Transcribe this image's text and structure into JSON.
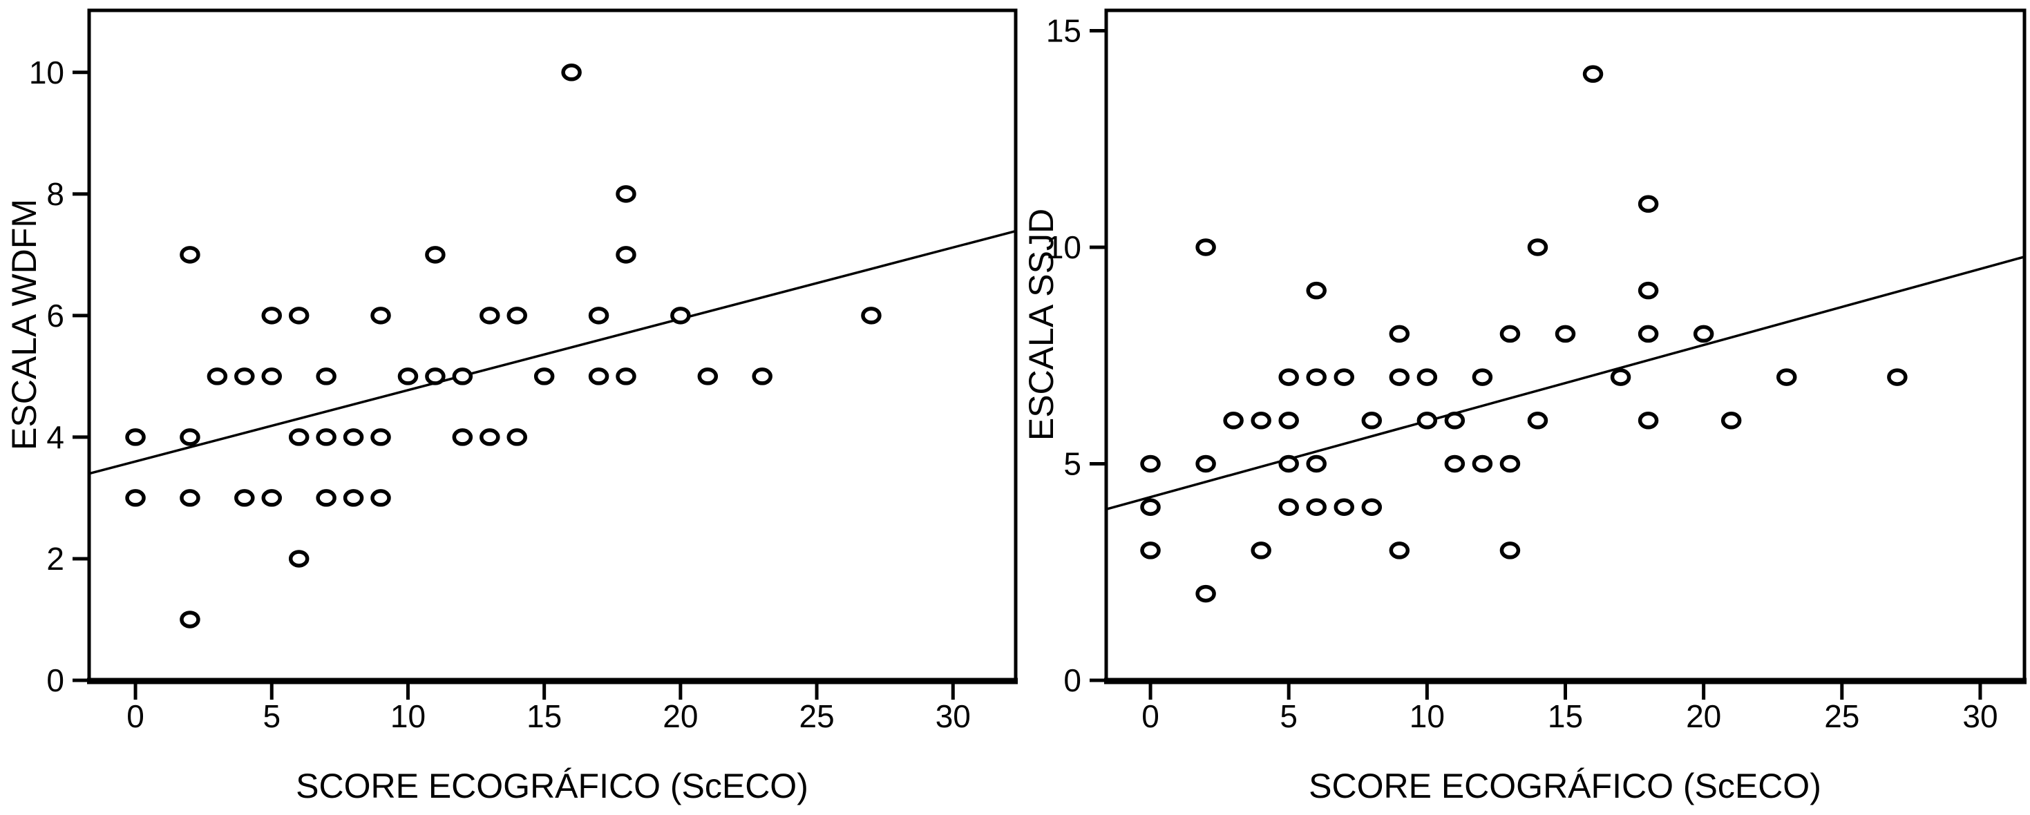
{
  "figure": {
    "background": "#ffffff",
    "ink_color": "#000000",
    "marker": "open-circle"
  },
  "chart_data": [
    {
      "type": "scatter",
      "title": "",
      "xlabel": "SCORE ECOGRÁFICO (ScECO)",
      "ylabel": "ESCALA WDFM",
      "xticks": [
        0,
        5,
        10,
        15,
        20,
        25,
        30
      ],
      "yticks": [
        0,
        2,
        4,
        6,
        8,
        10
      ],
      "xlim": [
        -1.7,
        32.3
      ],
      "ylim": [
        0,
        11.02
      ],
      "grid": false,
      "legend": "none",
      "points": [
        [
          16,
          10
        ],
        [
          18,
          8
        ],
        [
          2,
          7
        ],
        [
          11,
          7
        ],
        [
          18,
          7
        ],
        [
          5,
          6
        ],
        [
          6,
          6
        ],
        [
          9,
          6
        ],
        [
          13,
          6
        ],
        [
          14,
          6
        ],
        [
          17,
          6
        ],
        [
          20,
          6
        ],
        [
          27,
          6
        ],
        [
          3,
          5
        ],
        [
          4,
          5
        ],
        [
          5,
          5
        ],
        [
          7,
          5
        ],
        [
          10,
          5
        ],
        [
          11,
          5
        ],
        [
          12,
          5
        ],
        [
          15,
          5
        ],
        [
          17,
          5
        ],
        [
          18,
          5
        ],
        [
          21,
          5
        ],
        [
          23,
          5
        ],
        [
          0,
          4
        ],
        [
          2,
          4
        ],
        [
          6,
          4
        ],
        [
          7,
          4
        ],
        [
          8,
          4
        ],
        [
          9,
          4
        ],
        [
          12,
          4
        ],
        [
          13,
          4
        ],
        [
          14,
          4
        ],
        [
          0,
          3
        ],
        [
          2,
          3
        ],
        [
          4,
          3
        ],
        [
          5,
          3
        ],
        [
          7,
          3
        ],
        [
          8,
          3
        ],
        [
          9,
          3
        ],
        [
          6,
          2
        ],
        [
          2,
          1
        ]
      ],
      "trendline": {
        "x1": -1.7,
        "y1": 3.4,
        "x2": 32.3,
        "y2": 7.39
      }
    },
    {
      "type": "scatter",
      "title": "",
      "xlabel": "SCORE ECOGRÁFICO (ScECO)",
      "ylabel": "ESCALA SSJD",
      "xticks": [
        0,
        5,
        10,
        15,
        20,
        25,
        30
      ],
      "yticks": [
        0,
        5,
        10,
        15
      ],
      "xlim": [
        -1.6,
        31.6
      ],
      "ylim": [
        0,
        15.47
      ],
      "grid": false,
      "legend": "none",
      "points": [
        [
          16,
          14
        ],
        [
          18,
          11
        ],
        [
          2,
          10
        ],
        [
          14,
          10
        ],
        [
          6,
          9
        ],
        [
          18,
          9
        ],
        [
          9,
          8
        ],
        [
          13,
          8
        ],
        [
          15,
          8
        ],
        [
          18,
          8
        ],
        [
          20,
          8
        ],
        [
          5,
          7
        ],
        [
          6,
          7
        ],
        [
          7,
          7
        ],
        [
          9,
          7
        ],
        [
          10,
          7
        ],
        [
          12,
          7
        ],
        [
          17,
          7
        ],
        [
          23,
          7
        ],
        [
          27,
          7
        ],
        [
          3,
          6
        ],
        [
          4,
          6
        ],
        [
          5,
          6
        ],
        [
          8,
          6
        ],
        [
          10,
          6
        ],
        [
          11,
          6
        ],
        [
          14,
          6
        ],
        [
          18,
          6
        ],
        [
          21,
          6
        ],
        [
          0,
          5
        ],
        [
          2,
          5
        ],
        [
          5,
          5
        ],
        [
          6,
          5
        ],
        [
          11,
          5
        ],
        [
          12,
          5
        ],
        [
          13,
          5
        ],
        [
          0,
          4
        ],
        [
          5,
          4
        ],
        [
          6,
          4
        ],
        [
          7,
          4
        ],
        [
          8,
          4
        ],
        [
          0,
          3
        ],
        [
          4,
          3
        ],
        [
          9,
          3
        ],
        [
          13,
          3
        ],
        [
          2,
          2
        ]
      ],
      "trendline": {
        "x1": -1.6,
        "y1": 3.95,
        "x2": 31.6,
        "y2": 9.78
      }
    }
  ]
}
